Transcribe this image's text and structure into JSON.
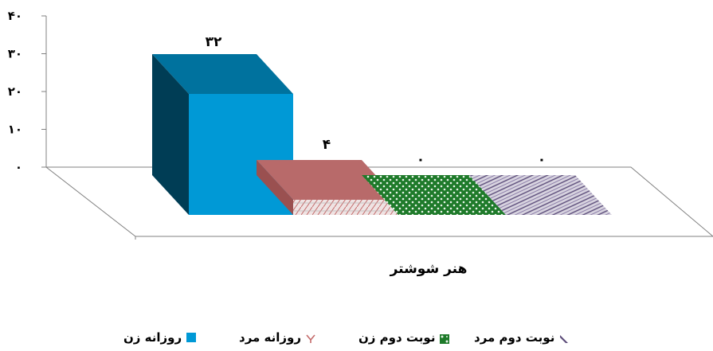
{
  "chart_data": {
    "type": "bar",
    "categories": [
      "هنر شوشتر"
    ],
    "xlabel": "هنر شوشتر",
    "ylabel": "",
    "ylim": [
      0,
      40
    ],
    "yticks": [
      "۰",
      "۱۰",
      "۲۰",
      "۳۰",
      "۴۰"
    ],
    "ytick_values": [
      0,
      10,
      20,
      30,
      40
    ],
    "series": [
      {
        "name": "روزانه زن",
        "values": [
          32
        ],
        "label": "۳۲",
        "color": "#0099d6"
      },
      {
        "name": "روزانه مرد",
        "values": [
          4
        ],
        "label": "۴",
        "color": "#c97a7a"
      },
      {
        "name": "نوبت دوم زن",
        "values": [
          0
        ],
        "label": "۰",
        "color": "#1f7a2e"
      },
      {
        "name": "نوبت دوم مرد",
        "values": [
          0
        ],
        "label": "۰",
        "color": "#7a6a9a"
      }
    ],
    "grid": false,
    "legend_position": "bottom"
  }
}
